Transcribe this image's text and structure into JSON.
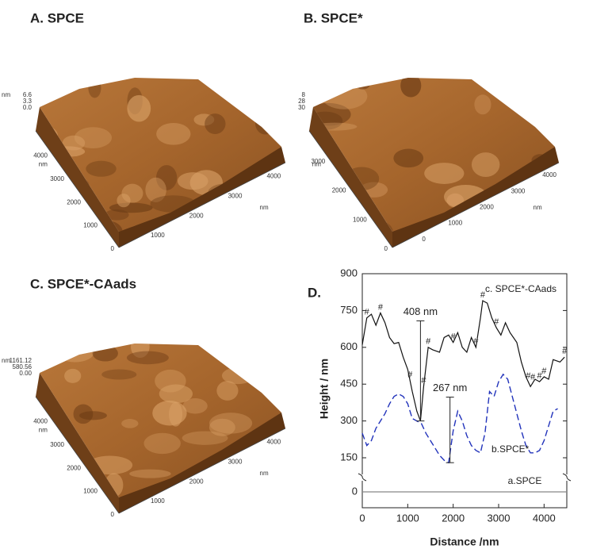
{
  "panels": [
    {
      "label": "A. SPCE",
      "z_labels": [
        "6.6",
        "3.3",
        "0.0"
      ],
      "z_unit": "nm",
      "y_labels": [
        "0",
        "1000",
        "2000",
        "3000",
        "4000"
      ],
      "y_unit": "nm",
      "x_labels": [
        "1000",
        "2000",
        "3000",
        "4000"
      ],
      "x_unit": "nm"
    },
    {
      "label": "B. SPCE*",
      "z_labels": [
        "8",
        "28",
        "30"
      ],
      "y_labels": [
        "0",
        "1000",
        "2000",
        "3000"
      ],
      "y_unit": "nm",
      "x_labels": [
        "0",
        "1000",
        "2000",
        "3000",
        "4000"
      ],
      "x_unit": "nm"
    },
    {
      "label": "C. SPCE*-CAads",
      "z_labels": [
        "1161.12",
        "580.56",
        "0.00"
      ],
      "z_unit": "nm",
      "y_labels": [
        "0",
        "1000",
        "2000",
        "3000",
        "4000"
      ],
      "y_unit": "nm",
      "x_labels": [
        "1000",
        "2000",
        "3000",
        "4000"
      ],
      "x_unit": "nm"
    }
  ],
  "chart_data": {
    "type": "line",
    "panel_label": "D.",
    "x_label": "Distance /nm",
    "y_label": "Height / nm",
    "xlim": [
      0,
      4500
    ],
    "xticks": [
      0,
      1000,
      2000,
      3000,
      4000
    ],
    "ylim": [
      0,
      900
    ],
    "yticks": [
      0,
      150,
      300,
      450,
      600,
      750,
      900
    ],
    "series": [
      {
        "name": "c. SPCE*-CAads",
        "color": "#111111",
        "dash": false,
        "x": [
          0,
          100,
          200,
          300,
          400,
          500,
          600,
          700,
          800,
          900,
          1000,
          1100,
          1200,
          1280,
          1350,
          1450,
          1550,
          1700,
          1800,
          1900,
          2000,
          2100,
          2200,
          2300,
          2400,
          2500,
          2600,
          2650,
          2750,
          2850,
          2950,
          3050,
          3150,
          3250,
          3400,
          3500,
          3600,
          3700,
          3800,
          3900,
          4000,
          4100,
          4200,
          4350,
          4450
        ],
        "values": [
          610,
          720,
          735,
          690,
          740,
          700,
          640,
          615,
          620,
          560,
          510,
          420,
          340,
          300,
          440,
          600,
          590,
          580,
          640,
          650,
          620,
          660,
          600,
          580,
          640,
          600,
          720,
          790,
          780,
          720,
          680,
          650,
          700,
          660,
          620,
          540,
          480,
          440,
          470,
          460,
          480,
          470,
          550,
          540,
          560
        ]
      },
      {
        "name": "b.SPCE*",
        "color": "#2233bb",
        "dash": true,
        "x": [
          0,
          100,
          200,
          300,
          400,
          500,
          600,
          700,
          800,
          900,
          1000,
          1100,
          1200,
          1300,
          1400,
          1500,
          1600,
          1700,
          1800,
          1900,
          2000,
          2100,
          2200,
          2300,
          2400,
          2500,
          2600,
          2700,
          2800,
          2900,
          3000,
          3100,
          3200,
          3300,
          3400,
          3500,
          3600,
          3700,
          3800,
          3900,
          4000,
          4100,
          4200,
          4300
        ],
        "values": [
          250,
          200,
          220,
          270,
          300,
          330,
          370,
          400,
          410,
          400,
          370,
          310,
          300,
          290,
          250,
          220,
          190,
          160,
          140,
          130,
          260,
          340,
          300,
          240,
          200,
          180,
          170,
          250,
          420,
          400,
          460,
          490,
          470,
          400,
          330,
          260,
          200,
          170,
          170,
          180,
          220,
          280,
          340,
          350
        ]
      },
      {
        "name": "a.SPCE",
        "color": "#888888",
        "dash": false,
        "x": [
          0,
          4500
        ],
        "values": [
          0,
          0
        ]
      }
    ],
    "hash_marks": {
      "label": "#",
      "x": [
        100,
        400,
        1050,
        1350,
        1450,
        2000,
        2500,
        2650,
        2950,
        3650,
        3750,
        3900,
        4000,
        4450
      ]
    },
    "annotations": [
      {
        "text": "408 nm",
        "x": 1280,
        "from": 300,
        "to": 708
      },
      {
        "text": "267 nm",
        "x": 1930,
        "from": 130,
        "to": 397
      }
    ]
  }
}
